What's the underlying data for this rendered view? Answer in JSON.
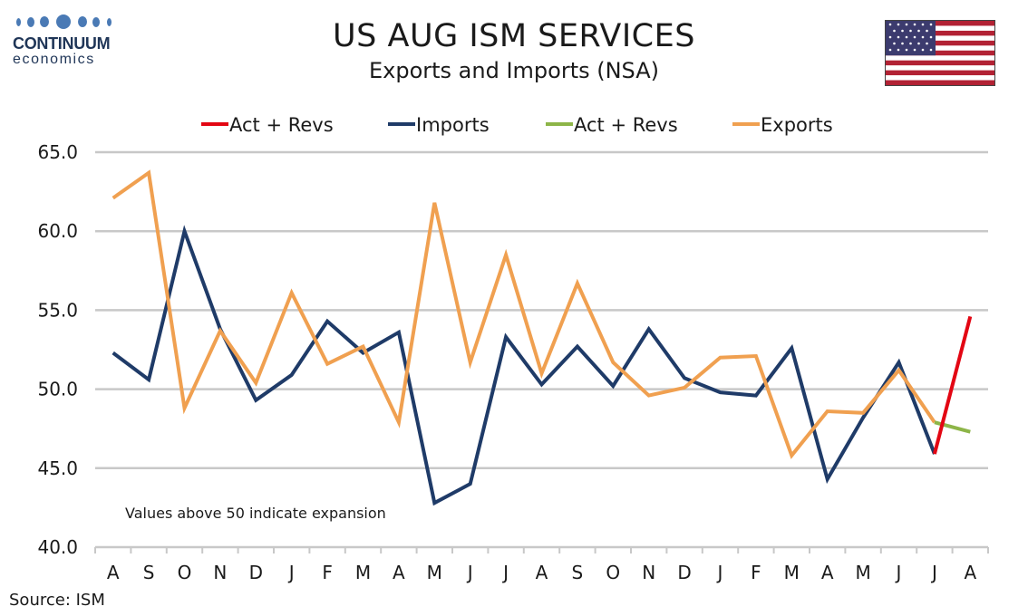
{
  "header": {
    "logo_name": "CONTINUUM",
    "logo_sub": "economics",
    "title": "US AUG ISM SERVICES",
    "subtitle": "Exports and Imports (NSA)"
  },
  "footer": {
    "source": "Source: ISM"
  },
  "chart_data": {
    "type": "line",
    "categories": [
      "A",
      "S",
      "O",
      "N",
      "D",
      "J",
      "F",
      "M",
      "A",
      "M",
      "J",
      "J",
      "A",
      "S",
      "O",
      "N",
      "D",
      "J",
      "F",
      "M",
      "A",
      "M",
      "J",
      "J",
      "A"
    ],
    "ylim": [
      40,
      65
    ],
    "yticks": [
      "40.0",
      "45.0",
      "50.0",
      "55.0",
      "60.0",
      "65.0"
    ],
    "grid": "horizontal",
    "legend_position": "top",
    "annotation": "Values above 50 indicate expansion",
    "legend": [
      {
        "label": "Act + Revs",
        "color": "#e30613"
      },
      {
        "label": "Imports",
        "color": "#1f3b68"
      },
      {
        "label": "Act + Revs",
        "color": "#8db548"
      },
      {
        "label": "Exports",
        "color": "#f0a050"
      }
    ],
    "series": [
      {
        "name": "Imports",
        "color": "#1f3b68",
        "values": [
          52.3,
          50.6,
          60.0,
          53.8,
          49.3,
          50.9,
          54.3,
          52.3,
          53.6,
          42.8,
          44.0,
          53.3,
          50.3,
          52.7,
          50.2,
          53.8,
          50.7,
          49.8,
          49.6,
          52.6,
          44.3,
          48.2,
          51.7,
          45.9,
          null
        ]
      },
      {
        "name": "Exports",
        "color": "#f0a050",
        "values": [
          62.1,
          63.7,
          48.8,
          53.7,
          50.4,
          56.1,
          51.6,
          52.7,
          47.9,
          61.8,
          51.7,
          58.5,
          51.0,
          56.7,
          51.7,
          49.6,
          50.1,
          52.0,
          52.1,
          45.8,
          48.6,
          48.5,
          51.2,
          47.9,
          null
        ]
      },
      {
        "name": "Act + Revs",
        "color": "#e30613",
        "values": [
          null,
          null,
          null,
          null,
          null,
          null,
          null,
          null,
          null,
          null,
          null,
          null,
          null,
          null,
          null,
          null,
          null,
          null,
          null,
          null,
          null,
          null,
          null,
          45.9,
          54.6
        ]
      },
      {
        "name": "Act + Revs",
        "color": "#8db548",
        "values": [
          null,
          null,
          null,
          null,
          null,
          null,
          null,
          null,
          null,
          null,
          null,
          null,
          null,
          null,
          null,
          null,
          null,
          null,
          null,
          null,
          null,
          null,
          null,
          47.9,
          47.3
        ]
      }
    ]
  }
}
